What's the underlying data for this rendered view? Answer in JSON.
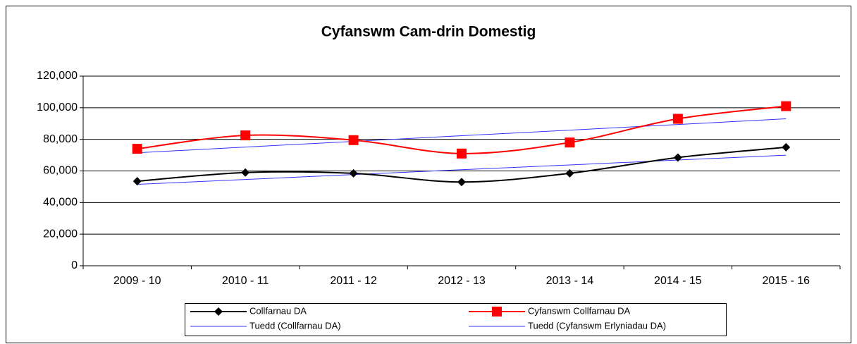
{
  "chart_data": {
    "type": "line",
    "title": "Cyfanswm Cam-drin Domestig",
    "categories": [
      "2009 - 10",
      "2010 - 11",
      "2011 - 12",
      "2012 - 13",
      "2013 - 14",
      "2014 - 15",
      "2015 - 16"
    ],
    "series": [
      {
        "name": "Collfarnau DA",
        "color": "#000000",
        "marker": "diamond",
        "smooth": true,
        "values": [
          53500,
          59000,
          58500,
          53000,
          58500,
          68500,
          75000
        ]
      },
      {
        "name": "Cyfanswm Collfarnau DA",
        "color": "#ff0000",
        "marker": "square",
        "smooth": true,
        "values": [
          74000,
          82500,
          79500,
          71000,
          78000,
          93000,
          101000
        ]
      },
      {
        "name": "Tuedd (Collfarnau DA)",
        "color": "#3333ff",
        "marker": null,
        "smooth": false,
        "values": [
          51500,
          54600,
          57700,
          60800,
          63800,
          66900,
          70000
        ]
      },
      {
        "name": "Tuedd (Cyfanswm Erlyniadau DA)",
        "color": "#3333ff",
        "marker": null,
        "smooth": false,
        "values": [
          71500,
          75100,
          78700,
          82300,
          85800,
          89400,
          93000
        ]
      }
    ],
    "ylim": [
      0,
      120000
    ],
    "yticks": [
      0,
      {
        "value": 20000,
        "label": "20,000"
      },
      {
        "value": 40000,
        "label": "40,000"
      },
      {
        "value": 60000,
        "label": "60,000"
      },
      {
        "value": 80000,
        "label": "80,000"
      },
      {
        "value": 100000,
        "label": "100,000"
      },
      {
        "value": 120000,
        "label": "120,000"
      }
    ],
    "grid": true,
    "legend": "bottom"
  }
}
